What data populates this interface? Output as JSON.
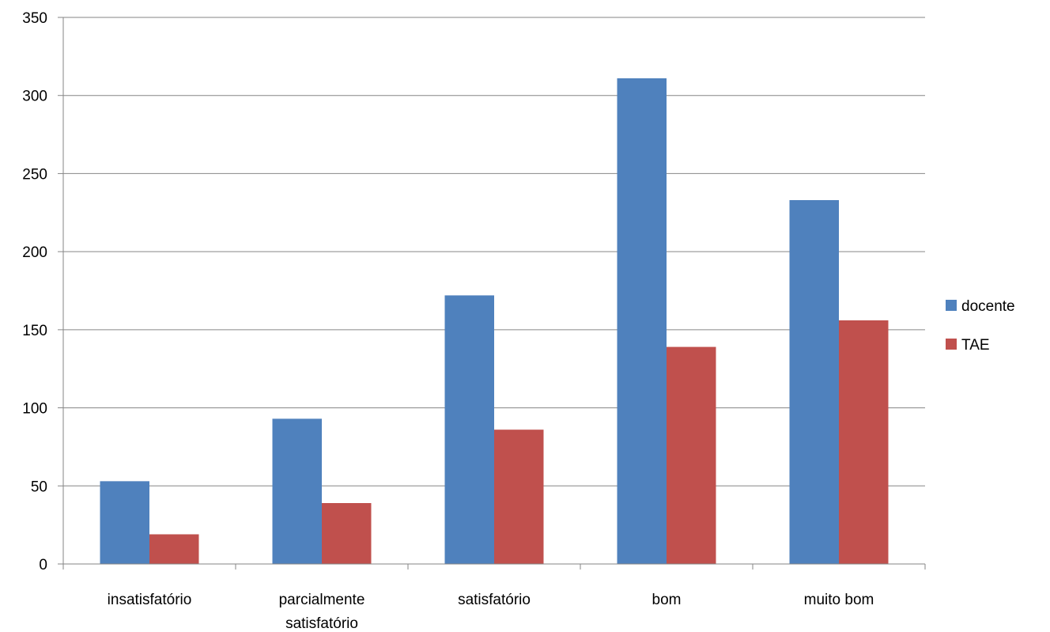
{
  "chart_data": {
    "type": "bar",
    "categories": [
      [
        "insatisfatório"
      ],
      [
        "parcialmente",
        "satisfatório"
      ],
      [
        "satisfatório"
      ],
      [
        "bom"
      ],
      [
        "muito bom"
      ]
    ],
    "series": [
      {
        "name": "docente",
        "values": [
          53,
          93,
          172,
          311,
          233
        ],
        "color": "#4F81BD"
      },
      {
        "name": "TAE",
        "values": [
          19,
          39,
          86,
          139,
          156
        ],
        "color": "#C0504D"
      }
    ],
    "yticks": [
      0,
      50,
      100,
      150,
      200,
      250,
      300,
      350
    ],
    "ylim": [
      0,
      350
    ],
    "grid": true,
    "legend_position": "right"
  }
}
